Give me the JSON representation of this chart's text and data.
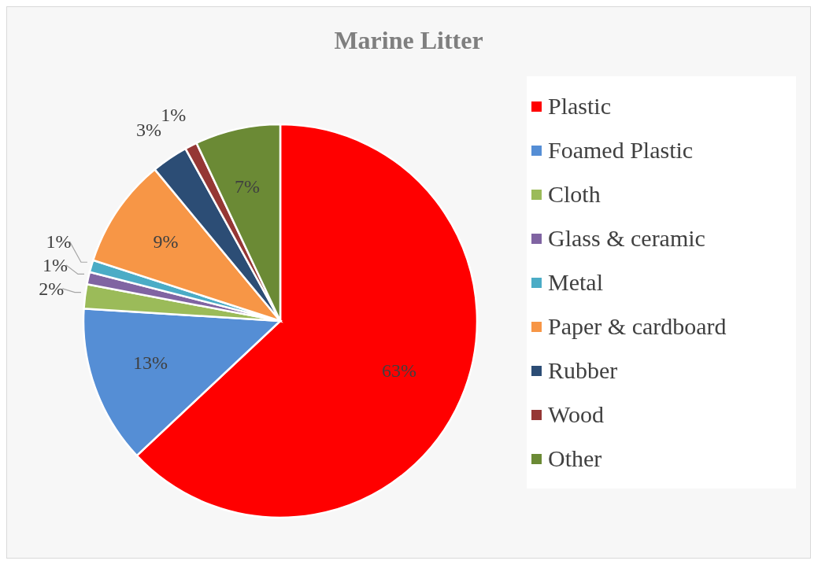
{
  "chart_data": {
    "type": "pie",
    "title": "Marine Litter",
    "categories": [
      "Plastic",
      "Foamed Plastic",
      "Cloth",
      "Glass & ceramic",
      "Metal",
      "Paper & cardboard",
      "Rubber",
      "Wood",
      "Other"
    ],
    "values": [
      63,
      13,
      2,
      1,
      1,
      9,
      3,
      1,
      7
    ],
    "value_labels": [
      "63%",
      "13%",
      "2%",
      "1%",
      "1%",
      "9%",
      "3%",
      "1%",
      "7%"
    ],
    "colors": [
      "#ff0000",
      "#558ed5",
      "#9bbb59",
      "#8064a2",
      "#4bacc6",
      "#f79646",
      "#2c4d75",
      "#953735",
      "#6b8a35"
    ],
    "legend": "right"
  }
}
